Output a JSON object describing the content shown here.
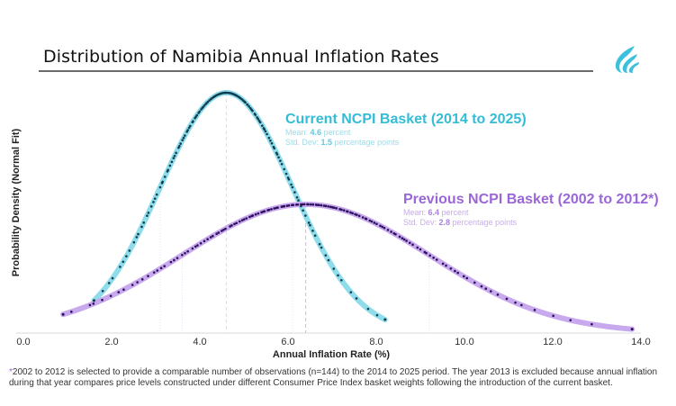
{
  "header": {
    "title": "Distribution of Namibia Annual Inflation Rates",
    "logo_icon": "flame-wave-logo-icon"
  },
  "chart_data": {
    "type": "line",
    "title": "Distribution of Namibia Annual Inflation Rates",
    "xlabel": "Annual Inflation Rate (%)",
    "ylabel": "Probability Density (Normal Fit)",
    "xlim": [
      0,
      14
    ],
    "xticks": [
      "0.0",
      "2.0",
      "4.0",
      "6.0",
      "8.0",
      "10.0",
      "12.0",
      "14.0"
    ],
    "xtick_values": [
      0,
      2,
      4,
      6,
      8,
      10,
      12,
      14
    ],
    "grid": false,
    "series": [
      {
        "name": "Current NCPI Basket (2014 to 2025)",
        "mean": 4.6,
        "std_dev": 1.5,
        "x_range": [
          1.6,
          8.2
        ],
        "color": "#8fdcea",
        "point_color": "#0f3d4f",
        "mean_line_color": "#bfe9f2",
        "sigma_line_color": "#d7f1f6",
        "n_observations": 144
      },
      {
        "name": "Previous NCPI Basket (2002 to 2012*)",
        "mean": 6.4,
        "std_dev": 2.8,
        "x_range": [
          0.9,
          13.8
        ],
        "color": "#c9a9ee",
        "point_color": "#2a0f5a",
        "mean_line_color": "#cdb6ef",
        "sigma_line_color": "#e4d8f6",
        "n_observations": 144
      }
    ],
    "annotations": [
      {
        "title": "Current NCPI Basket (2014 to 2025)",
        "mean_label": "Mean: ",
        "mean_value": "4.6",
        "mean_unit": " percent",
        "sd_label": "Std. Dev: ",
        "sd_value": "1.5",
        "sd_unit": " percentage points"
      },
      {
        "title": "Previous NCPI Basket (2002 to 2012*)",
        "mean_label": "Mean: ",
        "mean_value": "6.4",
        "mean_unit": " percent",
        "sd_label": "Std. Dev: ",
        "sd_value": "2.8",
        "sd_unit": " percentage points"
      }
    ]
  },
  "footnote": {
    "star": "*",
    "text": "2002 to 2012 is selected to provide a comparable number of observations (n=144) to the 2014 to 2025 period. The year 2013 is excluded because annual inflation during that year compares price levels constructed under different Consumer Price Index basket weights following the introduction of the current basket."
  }
}
